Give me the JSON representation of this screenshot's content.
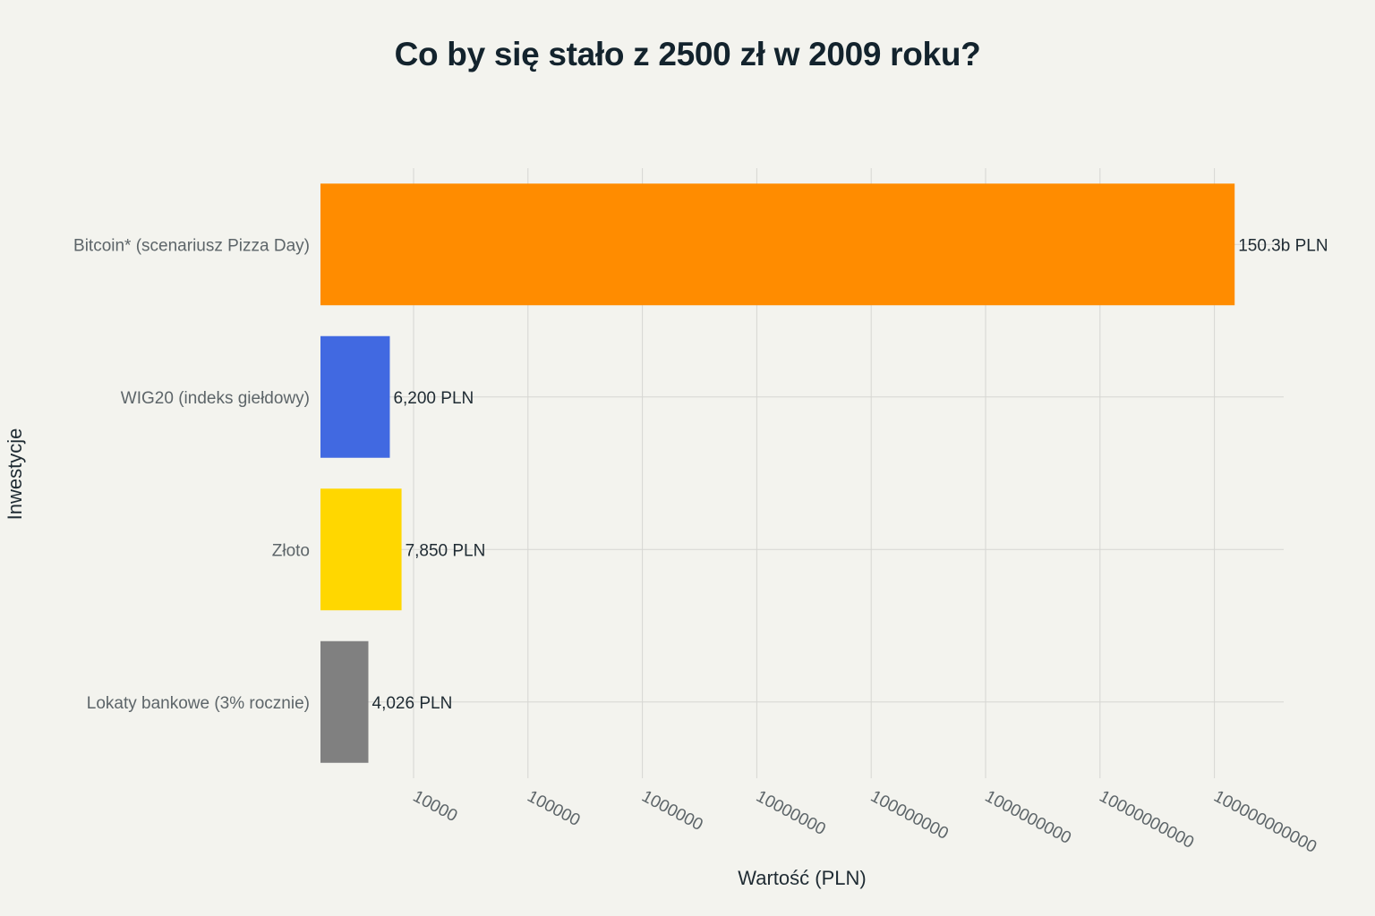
{
  "chart_data": {
    "type": "bar",
    "orientation": "horizontal",
    "title": "Co by się stało z 2500 zł w 2009 roku?",
    "xlabel": "Wartość (PLN)",
    "ylabel": "Inwestycje",
    "x_scale": "log",
    "xlim": [
      1500,
      400000000000
    ],
    "grid": true,
    "legend": "none",
    "x_ticks": [
      10000,
      100000,
      1000000,
      10000000,
      100000000,
      1000000000,
      10000000000,
      100000000000
    ],
    "x_tick_labels": [
      "10000",
      "100000",
      "1000000",
      "10000000",
      "100000000",
      "1000000000",
      "10000000000",
      "100000000000"
    ],
    "categories": [
      "Bitcoin* (scenariusz Pizza Day)",
      "WIG20 (indeks giełdowy)",
      "Złoto",
      "Lokaty bankowe (3% rocznie)"
    ],
    "values": [
      150300000000,
      6200,
      7850,
      4026
    ],
    "data_labels": [
      "150.3b PLN",
      "6,200 PLN",
      "7,850 PLN",
      "4,026 PLN"
    ],
    "colors": [
      "#ff8c00",
      "#4169e1",
      "#ffd700",
      "#808080"
    ]
  }
}
